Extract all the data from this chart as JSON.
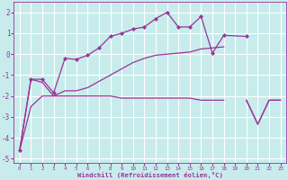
{
  "xlabel": "Windchill (Refroidissement éolien,°C)",
  "bg_color": "#c8ecec",
  "grid_color": "#ffffff",
  "line_color": "#993399",
  "xlim": [
    -0.5,
    23.5
  ],
  "ylim": [
    -5.2,
    2.5
  ],
  "xticks": [
    0,
    1,
    2,
    3,
    4,
    5,
    6,
    7,
    8,
    9,
    10,
    11,
    12,
    13,
    14,
    15,
    16,
    17,
    18,
    19,
    20,
    21,
    22,
    23
  ],
  "yticks": [
    -5,
    -4,
    -3,
    -2,
    -1,
    0,
    1,
    2
  ],
  "series1_x": [
    0,
    1,
    2,
    3,
    4,
    5,
    6,
    7,
    8,
    9,
    10,
    11,
    12,
    13,
    14,
    15,
    16,
    17,
    18,
    20
  ],
  "series1_y": [
    -4.6,
    -1.2,
    -1.2,
    -1.85,
    -0.2,
    -0.25,
    -0.05,
    0.3,
    0.85,
    1.0,
    1.2,
    1.3,
    1.7,
    2.0,
    1.3,
    1.3,
    1.8,
    0.05,
    0.9,
    0.85
  ],
  "series2_x": [
    0,
    1,
    2,
    3,
    4,
    5,
    6,
    7,
    8,
    9,
    10,
    11,
    12,
    13,
    14,
    15,
    16,
    17,
    18,
    20,
    21,
    22,
    23
  ],
  "series2_y": [
    -4.6,
    -1.2,
    -1.35,
    -2.0,
    -1.75,
    -1.75,
    -1.6,
    -1.3,
    -1.0,
    -0.7,
    -0.4,
    -0.2,
    -0.05,
    0.0,
    0.05,
    0.1,
    0.25,
    0.3,
    0.35,
    -2.2,
    -3.35,
    -2.2,
    -2.2
  ],
  "series3_x": [
    0,
    1,
    2,
    3,
    4,
    5,
    6,
    7,
    8,
    9,
    10,
    11,
    12,
    13,
    14,
    15,
    16,
    17,
    18,
    20,
    21,
    22,
    23
  ],
  "series3_y": [
    -4.6,
    -2.5,
    -2.0,
    -2.0,
    -2.0,
    -2.0,
    -2.0,
    -2.0,
    -2.0,
    -2.1,
    -2.1,
    -2.1,
    -2.1,
    -2.1,
    -2.1,
    -2.1,
    -2.2,
    -2.2,
    -2.2,
    -2.2,
    -3.35,
    -2.2,
    -2.2
  ]
}
